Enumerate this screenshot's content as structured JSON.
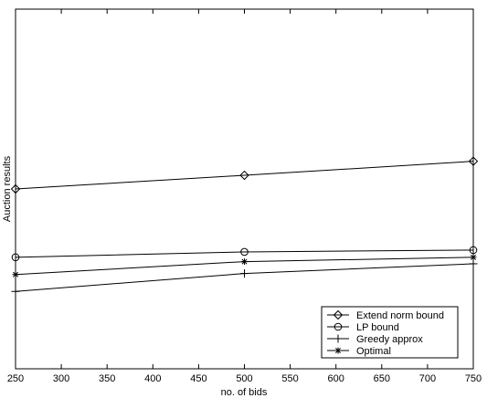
{
  "chart_data": {
    "type": "line",
    "title": "",
    "xlabel": "no. of bids",
    "ylabel": "Auction results",
    "x": [
      250,
      500,
      750
    ],
    "xlim": [
      250,
      750
    ],
    "xticks": [
      250,
      300,
      350,
      400,
      450,
      500,
      550,
      600,
      650,
      700,
      750
    ],
    "ylim": [
      0,
      1
    ],
    "yticks_labeled": false,
    "grid": false,
    "legend_position": "bottom-right",
    "series": [
      {
        "name": "Extend norm bound",
        "marker": "diamond",
        "values": [
          0.5,
          0.538,
          0.577
        ]
      },
      {
        "name": "LP bound",
        "marker": "circle",
        "values": [
          0.31,
          0.325,
          0.33
        ]
      },
      {
        "name": "Greedy approx",
        "marker": "plus",
        "values": [
          0.215,
          0.265,
          0.292
        ]
      },
      {
        "name": "Optimal",
        "marker": "star",
        "values": [
          0.262,
          0.298,
          0.31
        ]
      }
    ]
  }
}
